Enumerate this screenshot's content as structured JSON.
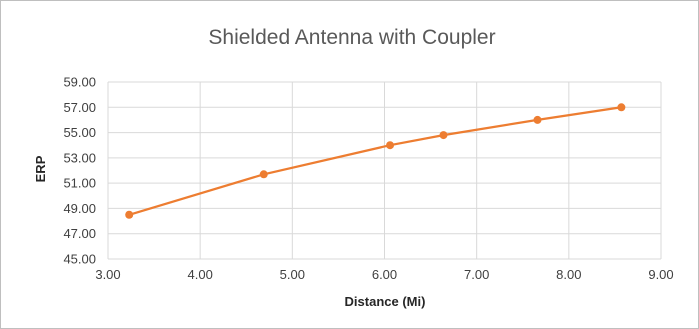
{
  "chart_data": {
    "type": "scatter",
    "title": "Shielded Antenna with Coupler",
    "xlabel": "Distance (Mi)",
    "ylabel": "ERP",
    "xlim": [
      3.0,
      9.0
    ],
    "ylim": [
      45.0,
      59.0
    ],
    "x_ticks": [
      "3.00",
      "4.00",
      "5.00",
      "6.00",
      "7.00",
      "8.00",
      "9.00"
    ],
    "y_ticks": [
      "45.00",
      "47.00",
      "49.00",
      "51.00",
      "53.00",
      "55.00",
      "57.00",
      "59.00"
    ],
    "x_tick_values": [
      3,
      4,
      5,
      6,
      7,
      8,
      9
    ],
    "y_tick_values": [
      45,
      47,
      49,
      51,
      53,
      55,
      57,
      59
    ],
    "grid": true,
    "lines": true,
    "markers": true,
    "series": [
      {
        "color": "#ed7d31",
        "x": [
          3.23,
          4.69,
          6.06,
          6.64,
          7.66,
          8.57
        ],
        "y": [
          48.5,
          51.7,
          54.0,
          54.8,
          56.0,
          57.0
        ]
      }
    ]
  }
}
